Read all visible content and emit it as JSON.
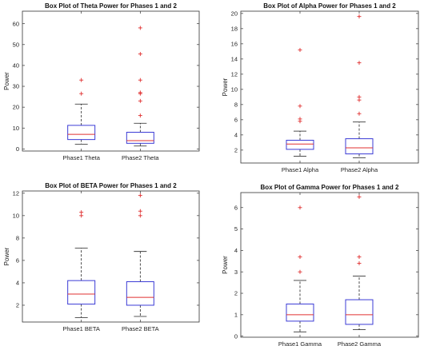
{
  "figure": {
    "colors": {
      "box": "#3b3bd6",
      "median": "#e03030",
      "whisker": "#222222",
      "outlier": "#e03030",
      "axes": "#333333"
    }
  },
  "chart_data": [
    {
      "type": "box",
      "title": "Box Plot of Theta Power for Phases 1 and 2",
      "ylabel": "Power",
      "ylim": [
        -1,
        66
      ],
      "yticks": [
        0,
        10,
        20,
        30,
        40,
        50,
        60
      ],
      "categories": [
        "Phase1 Theta",
        "Phase2 Theta"
      ],
      "boxes": [
        {
          "whisker_low": 2.3,
          "q1": 4.5,
          "median": 7.0,
          "q3": 11.3,
          "whisker_high": 21.5,
          "outliers": [
            26.5,
            33.0
          ]
        },
        {
          "whisker_low": 1.4,
          "q1": 2.7,
          "median": 4.0,
          "q3": 8.0,
          "whisker_high": 12.3,
          "outliers": [
            16.0,
            23.0,
            26.5,
            27.0,
            33.0,
            45.5,
            58.0
          ]
        }
      ]
    },
    {
      "type": "box",
      "title": "Box Plot of Alpha Power for Phases 1 and 2",
      "ylabel": "Power",
      "ylim": [
        0.3,
        20.3
      ],
      "yticks": [
        2,
        4,
        6,
        8,
        10,
        12,
        14,
        16,
        18,
        20
      ],
      "categories": [
        "Phase1 Alpha",
        "Phase2 Alpha"
      ],
      "boxes": [
        {
          "whisker_low": 1.2,
          "q1": 2.1,
          "median": 2.8,
          "q3": 3.3,
          "whisker_high": 4.5,
          "outliers": [
            5.8,
            6.1,
            7.8,
            15.2
          ]
        },
        {
          "whisker_low": 1.0,
          "q1": 1.5,
          "median": 2.3,
          "q3": 3.5,
          "whisker_high": 5.7,
          "outliers": [
            6.8,
            8.6,
            9.0,
            13.5,
            19.6
          ]
        }
      ]
    },
    {
      "type": "box",
      "title": "Box Plot of BETA Power for Phases 1 and 2",
      "ylabel": "Power",
      "ylim": [
        0.5,
        12.2
      ],
      "yticks": [
        2,
        4,
        6,
        8,
        10,
        12
      ],
      "categories": [
        "Phase1 BETA",
        "Phase2 BETA"
      ],
      "boxes": [
        {
          "whisker_low": 0.9,
          "q1": 2.1,
          "median": 3.0,
          "q3": 4.2,
          "whisker_high": 7.1,
          "outliers": [
            10.0,
            10.3
          ]
        },
        {
          "whisker_low": 1.0,
          "q1": 2.0,
          "median": 2.7,
          "q3": 4.1,
          "whisker_high": 6.8,
          "outliers": [
            10.0,
            10.4,
            11.8
          ]
        }
      ]
    },
    {
      "type": "box",
      "title": "Box Plot of Gamma Power for Phases 1 and 2",
      "ylabel": "Power",
      "ylim": [
        -0.05,
        6.7
      ],
      "yticks": [
        0,
        1,
        2,
        3,
        4,
        5,
        6
      ],
      "categories": [
        "Phase1 Gamma",
        "Phase2 Gamma"
      ],
      "boxes": [
        {
          "whisker_low": 0.2,
          "q1": 0.7,
          "median": 1.0,
          "q3": 1.5,
          "whisker_high": 2.6,
          "outliers": [
            3.0,
            3.7,
            6.0
          ]
        },
        {
          "whisker_low": 0.3,
          "q1": 0.55,
          "median": 1.0,
          "q3": 1.7,
          "whisker_high": 2.8,
          "outliers": [
            3.4,
            3.7,
            6.5
          ]
        }
      ]
    }
  ]
}
